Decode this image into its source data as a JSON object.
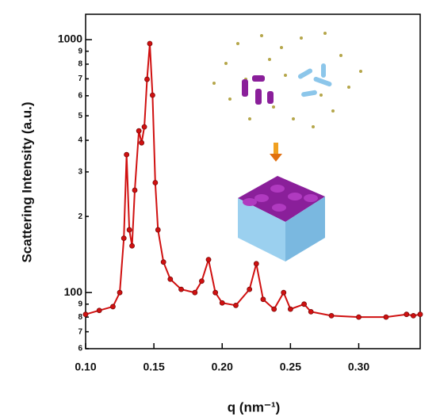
{
  "chart_data": {
    "type": "line",
    "xlabel": "q (nm⁻¹)",
    "ylabel": "Scattering Intensity (a.u.)",
    "yscale": "log",
    "xlim": [
      0.1,
      0.345
    ],
    "ylim": [
      60,
      1260
    ],
    "xticks": [
      {
        "value": 0.1,
        "label": "0.10"
      },
      0.15,
      {
        "value": 0.2,
        "label": "0.20"
      },
      0.25,
      {
        "value": 0.3,
        "label": "0.30"
      }
    ],
    "yticks": [
      {
        "value": 60,
        "label": "6"
      },
      {
        "value": 70,
        "label": "7"
      },
      {
        "value": 80,
        "label": "8"
      },
      {
        "value": 90,
        "label": "9"
      },
      100,
      {
        "value": 200,
        "label": "2"
      },
      {
        "value": 300,
        "label": "3"
      },
      {
        "value": 400,
        "label": "4"
      },
      {
        "value": 500,
        "label": "5"
      },
      {
        "value": 600,
        "label": "6"
      },
      {
        "value": 700,
        "label": "7"
      },
      {
        "value": 800,
        "label": "8"
      },
      {
        "value": 900,
        "label": "9"
      },
      1000
    ],
    "x": [
      0.1,
      0.11,
      0.12,
      0.125,
      0.128,
      0.13,
      0.132,
      0.134,
      0.136,
      0.139,
      0.141,
      0.143,
      0.145,
      0.147,
      0.149,
      0.151,
      0.153,
      0.157,
      0.162,
      0.17,
      0.18,
      0.185,
      0.19,
      0.195,
      0.2,
      0.21,
      0.22,
      0.225,
      0.23,
      0.238,
      0.245,
      0.25,
      0.26,
      0.265,
      0.28,
      0.3,
      0.32,
      0.335,
      0.34,
      0.345
    ],
    "series": [
      {
        "color": "#d01010",
        "values": [
          82,
          85,
          88,
          100,
          164,
          351,
          177,
          153,
          254,
          436,
          391,
          452,
          697,
          965,
          603,
          272,
          177,
          132,
          113,
          103,
          100,
          111,
          135,
          100,
          91,
          89,
          103,
          130,
          94,
          86,
          100,
          86,
          90,
          84,
          81,
          80,
          80,
          82,
          81,
          82
        ]
      }
    ]
  }
}
